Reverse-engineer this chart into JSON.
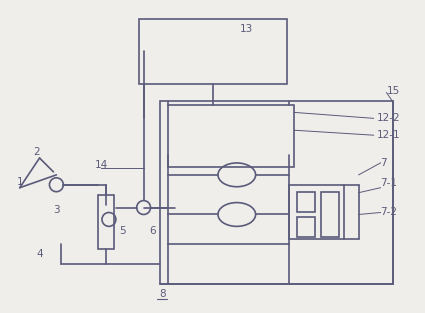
{
  "bg_color": "#f0eeea",
  "line_color": "#5a5a7a",
  "label_color": "#5a5a7a",
  "fig_width": 4.25,
  "fig_height": 3.13,
  "dpi": 100
}
